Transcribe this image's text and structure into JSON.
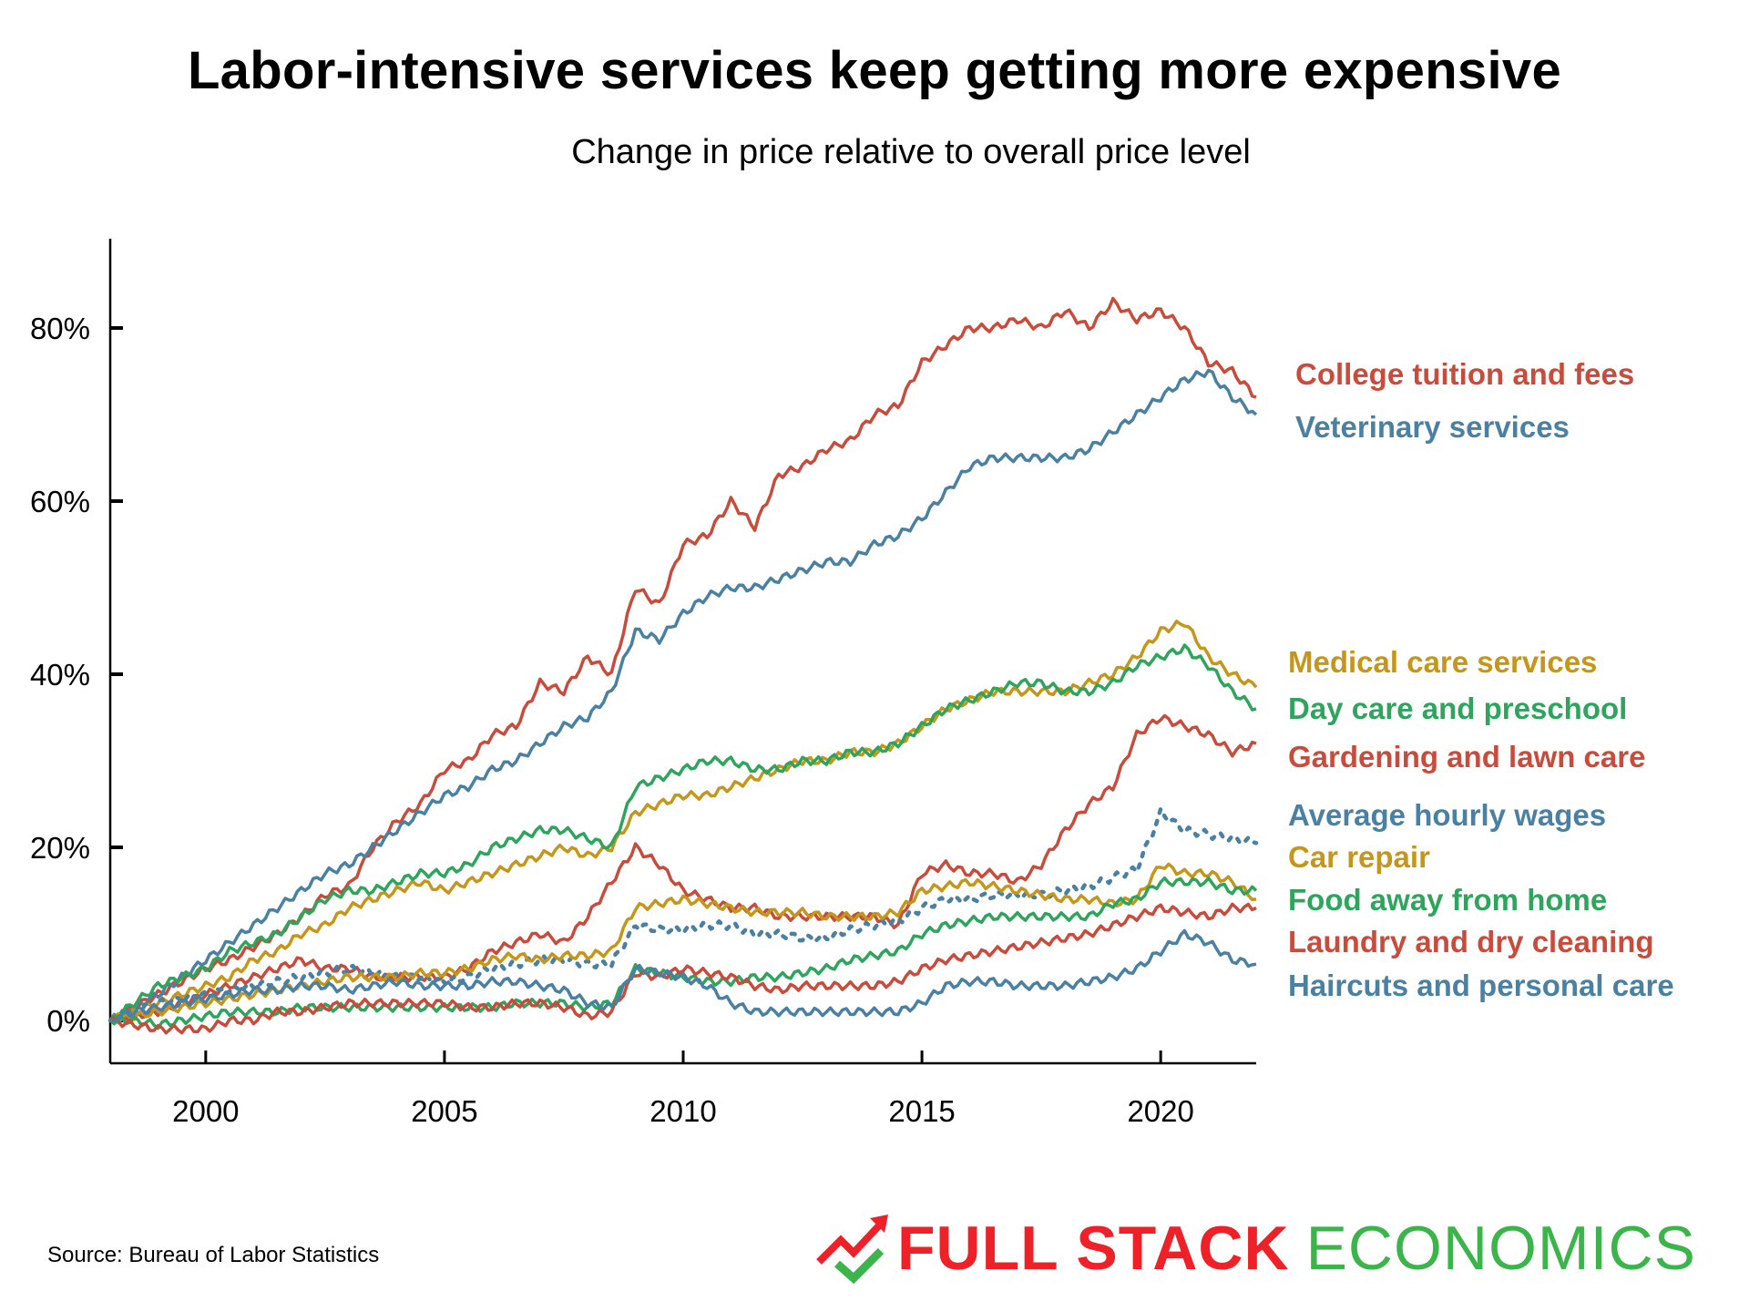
{
  "header": {
    "title": "Labor-intensive services keep getting more expensive",
    "subtitle": "Change in price relative to overall price level"
  },
  "footer": {
    "source": "Source: Bureau of Labor Statistics",
    "logo_part1": "FULL STACK",
    "logo_part2": "ECONOMICS",
    "logo_colors": {
      "red": "#ee2028",
      "green": "#3bb44a"
    }
  },
  "chart_data": {
    "type": "line",
    "title": "Labor-intensive services keep getting more expensive",
    "subtitle": "Change in price relative to overall price level",
    "xlabel": "",
    "ylabel": "",
    "xlim": [
      1998,
      2022
    ],
    "ylim": [
      -4.5,
      90
    ],
    "grid": false,
    "legend": "direct labels at right",
    "x_ticks": [
      2000,
      2005,
      2010,
      2015,
      2020
    ],
    "x_tick_labels": [
      "2000",
      "2005",
      "2010",
      "2015",
      "2020"
    ],
    "y_ticks": [
      0,
      20,
      40,
      60,
      80
    ],
    "y_tick_labels": [
      "0%",
      "20%",
      "40%",
      "60%",
      "80%"
    ],
    "x": [
      1998.0,
      1998.5,
      1999.0,
      1999.5,
      2000.0,
      2000.5,
      2001.0,
      2001.5,
      2002.0,
      2002.5,
      2003.0,
      2003.5,
      2004.0,
      2004.5,
      2005.0,
      2005.5,
      2006.0,
      2006.5,
      2007.0,
      2007.5,
      2008.0,
      2008.5,
      2009.0,
      2009.5,
      2010.0,
      2010.5,
      2011.0,
      2011.5,
      2012.0,
      2012.5,
      2013.0,
      2013.5,
      2014.0,
      2014.5,
      2015.0,
      2015.5,
      2016.0,
      2016.5,
      2017.0,
      2017.5,
      2018.0,
      2018.5,
      2019.0,
      2019.5,
      2020.0,
      2020.5,
      2021.0,
      2021.5,
      2022.0
    ],
    "series": [
      {
        "name": "College tuition and fees",
        "color": "#c84c3c",
        "style": "solid",
        "label_value": 75,
        "values": [
          0,
          1.5,
          3,
          4.5,
          6,
          7,
          8.5,
          10,
          12,
          14.5,
          15.5,
          20,
          23,
          25,
          29,
          30,
          33,
          34,
          39,
          38,
          42,
          40,
          50,
          48,
          55,
          56,
          60,
          57,
          63,
          64,
          66,
          67,
          70,
          71,
          76,
          78,
          80,
          80,
          81,
          80,
          82,
          80,
          83,
          81,
          82,
          80,
          76,
          75,
          72
        ]
      },
      {
        "name": "Veterinary services",
        "color": "#4a80a2",
        "style": "solid",
        "label_value": 69,
        "values": [
          0,
          1.5,
          3,
          5,
          7,
          9,
          11,
          13,
          15,
          17,
          18,
          20,
          22,
          24,
          26,
          27,
          29,
          30,
          32,
          34,
          35,
          38,
          45,
          44,
          47,
          49,
          50,
          50,
          51,
          52,
          53,
          53,
          55,
          56,
          58,
          61,
          64,
          65,
          65,
          65,
          65,
          66,
          68,
          70,
          72,
          74,
          75,
          72,
          70
        ]
      },
      {
        "name": "Medical care services",
        "color": "#c4961a",
        "style": "solid",
        "label_value": 39.5,
        "values": [
          0,
          1,
          2,
          3,
          4,
          5,
          7,
          8,
          10,
          11,
          13,
          14,
          15,
          16,
          15,
          16,
          17,
          18,
          19,
          20,
          19,
          20,
          24,
          25,
          26,
          26,
          27,
          28,
          29,
          30,
          30,
          31,
          31,
          32,
          34,
          36,
          37,
          38,
          38,
          38,
          38,
          39,
          40,
          42,
          45,
          46,
          42,
          40,
          38.5
        ]
      },
      {
        "name": "Day care and preschool",
        "color": "#2fa45c",
        "style": "solid",
        "label_value": 36.5,
        "values": [
          0,
          2,
          4,
          5,
          6,
          8,
          9,
          10,
          12,
          14,
          15,
          15,
          16,
          17,
          17,
          18,
          20,
          21,
          22,
          22,
          21,
          20,
          27,
          28,
          29,
          30,
          30,
          29,
          29,
          30,
          30,
          31,
          31,
          32,
          34,
          36,
          37,
          38,
          39,
          39,
          38,
          38,
          39,
          41,
          42,
          43,
          41,
          38,
          36
        ]
      },
      {
        "name": "Gardening and lawn care",
        "color": "#c84c3c",
        "style": "solid",
        "label_value": 31.5,
        "values": [
          0,
          0.5,
          1,
          2,
          3,
          4,
          5,
          6,
          7,
          6,
          6,
          5,
          5,
          5,
          5,
          6,
          8,
          9,
          10,
          9,
          12,
          16,
          20,
          18,
          15,
          14,
          13,
          13,
          12,
          12,
          12,
          12,
          12,
          11,
          17,
          18,
          17,
          17,
          16,
          18,
          22,
          25,
          27,
          33,
          35,
          34,
          33,
          31,
          32
        ]
      },
      {
        "name": "Average hourly wages",
        "color": "#4a80a2",
        "style": "dotted",
        "label_value": 21,
        "values": [
          0,
          1,
          2,
          2.5,
          3,
          3.5,
          4,
          4.5,
          5,
          5.5,
          6,
          5.5,
          5,
          5,
          4.5,
          5,
          6,
          6.5,
          7,
          7,
          6.5,
          6.5,
          11,
          10.5,
          10.5,
          11,
          11,
          10,
          10,
          9.5,
          9.5,
          10.5,
          11,
          11.5,
          13,
          14,
          14,
          14.5,
          14.5,
          14.5,
          15,
          15.5,
          16.5,
          17.5,
          24,
          22,
          21.5,
          21,
          20.5
        ]
      },
      {
        "name": "Car repair",
        "color": "#c4961a",
        "style": "solid",
        "label_value": 17,
        "values": [
          0,
          0.5,
          1,
          1.5,
          2,
          2.5,
          3,
          3.5,
          4,
          4.5,
          5,
          5,
          5,
          5.5,
          5.5,
          6,
          7,
          7.5,
          7,
          7.5,
          7.5,
          8,
          13,
          13.5,
          14,
          13.5,
          13,
          12.5,
          12.5,
          12.5,
          12,
          12,
          12,
          12.5,
          15,
          15.5,
          16,
          15.5,
          15,
          14.5,
          14,
          14,
          13.5,
          14,
          18,
          17,
          17,
          16,
          14
        ]
      },
      {
        "name": "Food away from home",
        "color": "#2fa45c",
        "style": "solid",
        "label_value": 15.5,
        "values": [
          0,
          0,
          -0.5,
          0,
          0.5,
          1,
          1,
          1,
          1.5,
          1.5,
          1.5,
          1.5,
          1.5,
          1.5,
          1.5,
          1.5,
          1.5,
          2,
          2,
          2,
          1.5,
          2,
          6,
          5.5,
          5,
          4.5,
          4.5,
          5,
          5,
          5.5,
          6,
          7,
          7.5,
          8,
          10,
          11,
          11.5,
          12,
          12,
          12,
          12,
          12,
          13.5,
          14,
          16,
          16,
          16,
          15,
          15
        ]
      },
      {
        "name": "Laundry and dry cleaning",
        "color": "#c84c3c",
        "style": "solid",
        "label_value": 13,
        "values": [
          0,
          -0.5,
          -1,
          -1,
          -1,
          0,
          0,
          1,
          1,
          1.5,
          2,
          2,
          2,
          2,
          2,
          1.5,
          1.5,
          2,
          2,
          1.5,
          0.5,
          1,
          5.5,
          5,
          6,
          5.5,
          5,
          4,
          3.5,
          4,
          4,
          4,
          4,
          4.5,
          6,
          7,
          7.5,
          8,
          8.5,
          9,
          9.5,
          10,
          11,
          12,
          13,
          12.5,
          12,
          13,
          13
        ]
      },
      {
        "name": "Haircuts and personal care",
        "color": "#4a80a2",
        "style": "solid",
        "label_value": 6.5,
        "values": [
          0,
          1,
          1.5,
          2,
          2.5,
          3,
          3.5,
          3.5,
          4,
          4,
          3.5,
          4,
          4.5,
          4,
          4,
          4,
          4.5,
          4.5,
          4,
          3.5,
          2,
          1.5,
          6,
          5.5,
          5,
          4,
          2,
          1,
          1,
          1,
          1,
          1,
          1,
          1,
          2,
          4,
          4.5,
          4.5,
          4,
          4,
          4,
          4.5,
          5,
          6,
          8,
          10,
          9,
          7,
          6.5
        ]
      }
    ]
  }
}
